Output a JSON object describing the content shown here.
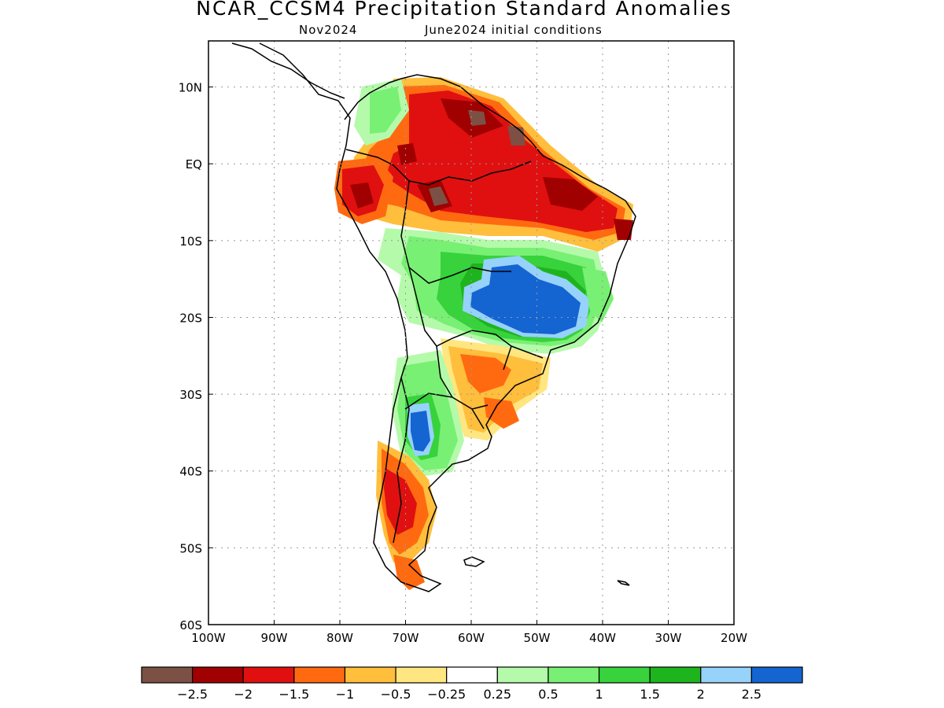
{
  "title": "NCAR_CCSM4 Precipitation Standard Anomalies",
  "subtitle_left": "Nov2024",
  "subtitle_right": "June2024 initial conditions",
  "map": {
    "lon_range": [
      -100,
      -20
    ],
    "lat_range": [
      -60,
      16
    ],
    "lon_ticks": [
      {
        "value": -100,
        "label": "100W"
      },
      {
        "value": -90,
        "label": "90W"
      },
      {
        "value": -80,
        "label": "80W"
      },
      {
        "value": -70,
        "label": "70W"
      },
      {
        "value": -60,
        "label": "60W"
      },
      {
        "value": -50,
        "label": "50W"
      },
      {
        "value": -40,
        "label": "40W"
      },
      {
        "value": -30,
        "label": "30W"
      },
      {
        "value": -20,
        "label": "20W"
      }
    ],
    "lat_ticks": [
      {
        "value": 10,
        "label": "10N"
      },
      {
        "value": 0,
        "label": "EQ"
      },
      {
        "value": -10,
        "label": "10S"
      },
      {
        "value": -20,
        "label": "20S"
      },
      {
        "value": -30,
        "label": "30S"
      },
      {
        "value": -40,
        "label": "40S"
      },
      {
        "value": -50,
        "label": "50S"
      },
      {
        "value": -60,
        "label": "60S"
      }
    ],
    "grid": true
  },
  "legend": {
    "colors": [
      "#7c5044",
      "#a10000",
      "#e01010",
      "#ff6a10",
      "#ffbe3c",
      "#ffe680",
      "#ffffff",
      "#b4faaa",
      "#78f073",
      "#37d23c",
      "#1eb41e",
      "#96d2fa",
      "#1464d2"
    ],
    "labels": [
      "−2.5",
      "−2",
      "−1.5",
      "−1",
      "−0.5",
      "−0.25",
      "0.25",
      "0.5",
      "1",
      "1.5",
      "2",
      "2.5"
    ]
  }
}
